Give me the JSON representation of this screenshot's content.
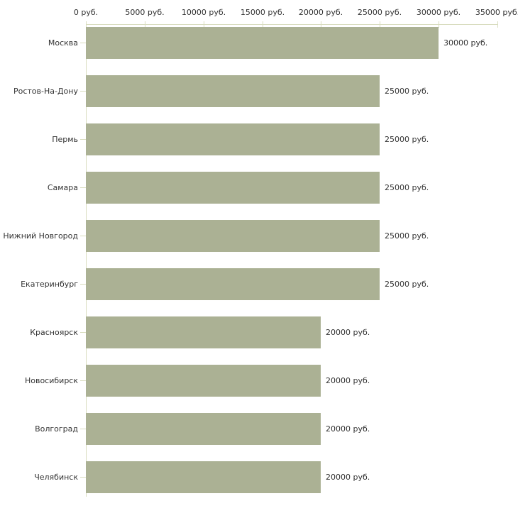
{
  "chart": {
    "background_color": "#ffffff",
    "bar_color": "#abb194",
    "axis_color": "#d8dcbe",
    "text_color": "#333333"
  },
  "chart_data": {
    "type": "bar",
    "orientation": "horizontal",
    "categories": [
      "Москва",
      "Ростов-На-Дону",
      "Пермь",
      "Самара",
      "Нижний Новгород",
      "Екатеринбург",
      "Красноярск",
      "Новосибирск",
      "Волгоград",
      "Челябинск"
    ],
    "values": [
      30000,
      25000,
      25000,
      25000,
      25000,
      25000,
      20000,
      20000,
      20000,
      20000
    ],
    "value_labels": [
      "30000 руб.",
      "25000 руб.",
      "25000 руб.",
      "25000 руб.",
      "25000 руб.",
      "25000 руб.",
      "20000 руб.",
      "20000 руб.",
      "20000 руб.",
      "20000 руб."
    ],
    "x_tick_values": [
      0,
      5000,
      10000,
      15000,
      20000,
      25000,
      30000,
      35000
    ],
    "x_tick_labels": [
      "0 руб.",
      "5000 руб.",
      "10000 руб.",
      "15000 руб.",
      "20000 руб.",
      "25000 руб.",
      "30000 руб.",
      "35000 руб."
    ],
    "xlim": [
      0,
      35000
    ],
    "unit": "руб.",
    "grid": false,
    "legend": false,
    "x_axis_position": "top"
  }
}
